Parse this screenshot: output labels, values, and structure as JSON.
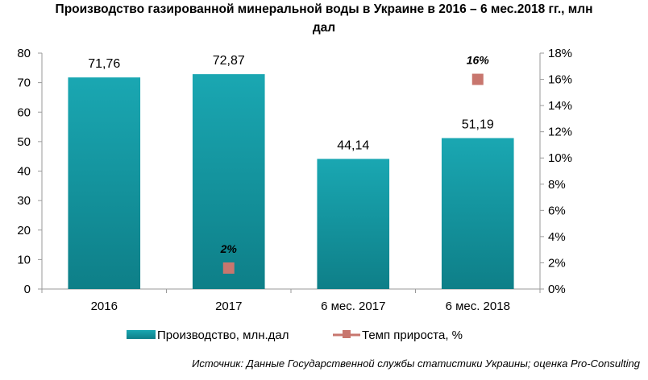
{
  "chart_data": {
    "type": "bar",
    "title_lines": [
      "Производство газированной минеральной воды в Украине в 2016 – 6 мес.2018 гг., млн",
      "дал"
    ],
    "categories": [
      "2016",
      "2017",
      "6 мес. 2017",
      "6 мес. 2018"
    ],
    "series": [
      {
        "name": "Производство, млн.дал",
        "type": "bar",
        "axis": "left",
        "values": [
          71.76,
          72.87,
          44.14,
          51.19
        ],
        "labels": [
          "71,76",
          "72,87",
          "44,14",
          "51,19"
        ],
        "color": "#1a9ba5"
      },
      {
        "name": "Темп прироста, %",
        "type": "marker",
        "axis": "right",
        "values": [
          null,
          1.6,
          null,
          16
        ],
        "labels": [
          null,
          "2%",
          null,
          "16%"
        ],
        "color": "#c8766e"
      }
    ],
    "ylim_left": [
      0,
      80
    ],
    "yticks_left": [
      "0",
      "10",
      "20",
      "30",
      "40",
      "50",
      "60",
      "70",
      "80"
    ],
    "ylim_right": [
      0,
      18
    ],
    "yticks_right": [
      "0%",
      "2%",
      "4%",
      "6%",
      "8%",
      "10%",
      "12%",
      "14%",
      "16%",
      "18%"
    ],
    "grid": false,
    "legend": "bottom",
    "source": "Источник: Данные Государственной службы статистики Украины; оценка Pro-Consulting"
  }
}
